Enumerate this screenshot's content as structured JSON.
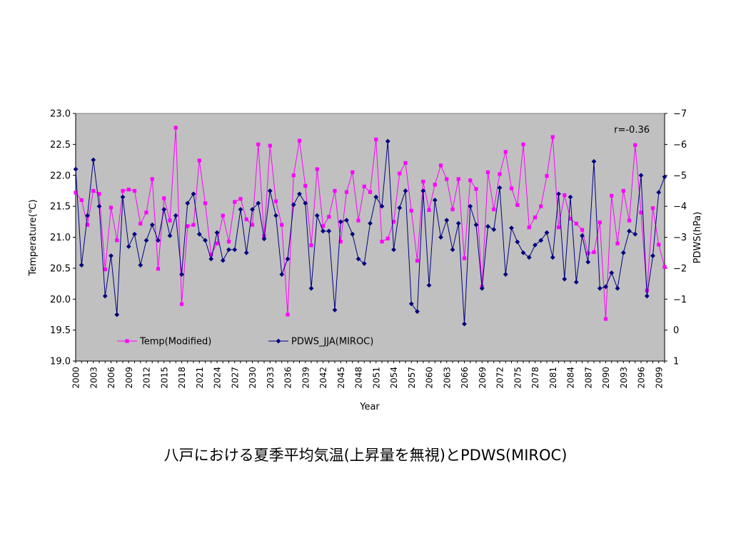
{
  "caption": "八戸における夏季平均気温(上昇量を無視)とPDWS(MIROC)",
  "chart_data": {
    "type": "line",
    "xlabel": "Year",
    "ylabel_left": "Temperature(℃)",
    "ylabel_right": "PDWS(hPa)",
    "annotation": "r=-0.36",
    "x_start": 2000,
    "x_end": 2100,
    "x_tick_labels": [
      "2000",
      "2003",
      "2006",
      "2009",
      "2012",
      "2015",
      "2018",
      "2021",
      "2024",
      "2027",
      "2030",
      "2033",
      "2036",
      "2039",
      "2042",
      "2045",
      "2048",
      "2051",
      "2054",
      "2057",
      "2060",
      "2063",
      "2066",
      "2069",
      "2072",
      "2075",
      "2078",
      "2081",
      "2084",
      "2087",
      "2090",
      "2093",
      "2096",
      "2099"
    ],
    "y_left": {
      "min": 19.0,
      "max": 23.0,
      "ticks": [
        "19.0",
        "19.5",
        "20.0",
        "20.5",
        "21.0",
        "21.5",
        "22.0",
        "22.5",
        "23.0"
      ]
    },
    "y_right": {
      "top": -7,
      "bottom": 1,
      "reversed": true,
      "ticks": [
        "-7",
        "-6",
        "-5",
        "-4",
        "-3",
        "-2",
        "-1",
        "0",
        "1"
      ]
    },
    "legend_placement": "bottom-left",
    "grid": false,
    "plot_background": "#c0c0c0",
    "series": [
      {
        "name": "Temp(Modified)",
        "axis": "left",
        "color": "#ff00ff",
        "marker": "square",
        "values": [
          21.72,
          21.6,
          21.2,
          21.75,
          21.7,
          20.48,
          21.48,
          20.95,
          21.75,
          21.77,
          21.75,
          21.22,
          21.4,
          21.94,
          20.49,
          21.63,
          21.27,
          22.77,
          19.92,
          21.18,
          21.2,
          22.24,
          21.55,
          20.72,
          20.9,
          21.35,
          20.93,
          21.57,
          21.62,
          21.29,
          21.2,
          22.5,
          21.02,
          22.48,
          21.58,
          21.2,
          19.75,
          22.0,
          22.56,
          21.83,
          20.87,
          22.1,
          21.18,
          21.33,
          21.75,
          20.93,
          21.73,
          22.05,
          21.27,
          21.82,
          21.73,
          22.58,
          20.93,
          20.98,
          21.25,
          22.03,
          22.2,
          21.43,
          20.62,
          21.9,
          21.44,
          21.85,
          22.16,
          21.94,
          21.45,
          21.94,
          20.66,
          21.92,
          21.78,
          20.2,
          22.05,
          21.45,
          22.02,
          22.38,
          21.79,
          21.52,
          22.5,
          21.16,
          21.32,
          21.5,
          21.99,
          22.62,
          21.16,
          21.68,
          21.3,
          21.22,
          21.12,
          20.74,
          20.76,
          21.24,
          19.68,
          21.67,
          20.9,
          21.75,
          21.27,
          22.49,
          21.4,
          20.14,
          21.47,
          20.88,
          20.52
        ]
      },
      {
        "name": "PDWS_JJA(MIROC)",
        "axis": "right",
        "color": "#000080",
        "marker": "diamond",
        "values": [
          -5.2,
          -2.1,
          -3.7,
          -5.5,
          -4.0,
          -1.1,
          -2.4,
          -0.5,
          -4.3,
          -2.7,
          -3.1,
          -2.1,
          -2.9,
          -3.4,
          -2.9,
          -3.9,
          -3.05,
          -3.7,
          -1.8,
          -4.1,
          -4.4,
          -3.1,
          -2.9,
          -2.3,
          -3.15,
          -2.25,
          -2.6,
          -2.6,
          -3.9,
          -2.5,
          -3.9,
          -4.1,
          -2.95,
          -4.5,
          -3.7,
          -1.8,
          -2.3,
          -4.05,
          -4.4,
          -4.1,
          -1.35,
          -3.7,
          -3.2,
          -3.2,
          -0.65,
          -3.5,
          -3.55,
          -3.1,
          -2.3,
          -2.15,
          -3.45,
          -4.3,
          -4.0,
          -6.1,
          -2.6,
          -3.95,
          -4.5,
          -0.85,
          -0.6,
          -4.5,
          -1.45,
          -4.2,
          -3.0,
          -3.55,
          -2.6,
          -3.45,
          -0.2,
          -4.0,
          -3.4,
          -1.35,
          -3.35,
          -3.25,
          -4.6,
          -1.8,
          -3.3,
          -2.85,
          -2.5,
          -2.35,
          -2.75,
          -2.9,
          -3.15,
          -2.35,
          -4.4,
          -1.65,
          -4.3,
          -1.55,
          -3.05,
          -2.2,
          -5.45,
          -1.35,
          -1.4,
          -1.85,
          -1.35,
          -2.5,
          -3.2,
          -3.1,
          -5.0,
          -1.1,
          -2.4,
          -4.45,
          -4.95
        ]
      }
    ]
  }
}
